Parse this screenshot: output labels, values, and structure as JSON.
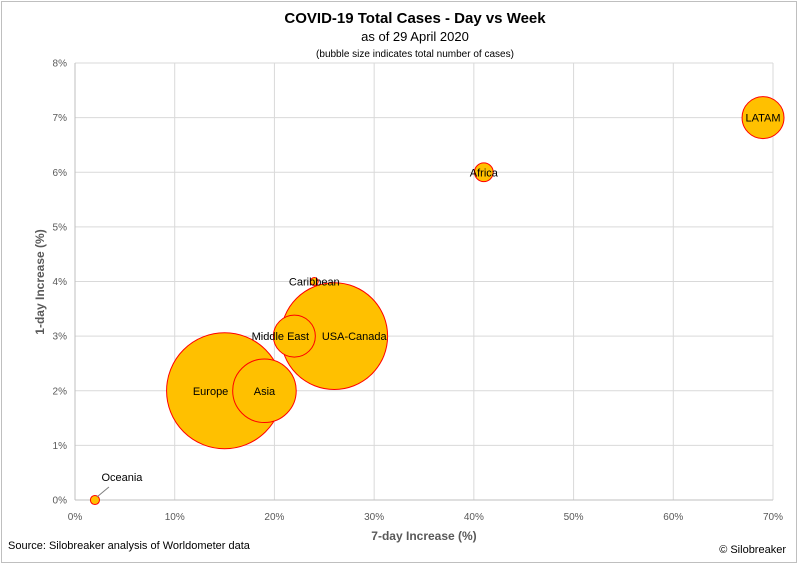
{
  "chart_data": {
    "type": "scatter",
    "title": "COVID-19 Total Cases - Day vs Week",
    "subtitle": "as of 29 April 2020",
    "note": "(bubble size indicates total number of cases)",
    "xlabel": "7-day Increase (%)",
    "ylabel": "1-day Increase (%)",
    "xlim": [
      0,
      70
    ],
    "ylim": [
      0,
      8
    ],
    "x_ticks": [
      "0%",
      "10%",
      "20%",
      "30%",
      "40%",
      "50%",
      "60%",
      "70%"
    ],
    "y_ticks": [
      "0%",
      "1%",
      "2%",
      "3%",
      "4%",
      "5%",
      "6%",
      "7%",
      "8%"
    ],
    "grid": true,
    "bubble_fill": "#FFC000",
    "bubble_stroke": "#FF0000",
    "series": [
      {
        "points": [
          {
            "label": "Europe",
            "x": 15,
            "y": 2,
            "size": 1300000
          },
          {
            "label": "USA-Canada",
            "x": 26,
            "y": 3,
            "size": 1100000
          },
          {
            "label": "Asia",
            "x": 19,
            "y": 2,
            "size": 390000
          },
          {
            "label": "Middle East",
            "x": 22,
            "y": 3,
            "size": 170000
          },
          {
            "label": "LATAM",
            "x": 69,
            "y": 7,
            "size": 170000
          },
          {
            "label": "Africa",
            "x": 41,
            "y": 6,
            "size": 34000
          },
          {
            "label": "Caribbean",
            "x": 24,
            "y": 4,
            "size": 6000
          },
          {
            "label": "Oceania",
            "x": 2,
            "y": 0,
            "size": 8000
          }
        ]
      }
    ]
  },
  "footer": {
    "source": "Source: Silobreaker analysis of Worldometer data",
    "credit": "© Silobreaker"
  }
}
